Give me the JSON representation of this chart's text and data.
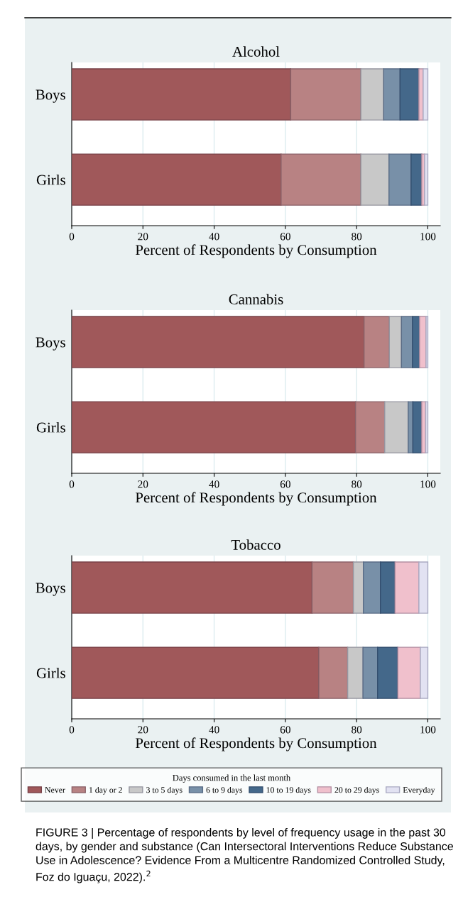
{
  "chart_data": [
    {
      "type": "bar",
      "title": "Alcohol",
      "xlabel": "Percent of Respondents by Consumption",
      "categories": [
        "Boys",
        "Girls"
      ],
      "stacked": true,
      "orientation": "horizontal",
      "xlim": [
        0,
        103.5
      ],
      "xticks": [
        0,
        20,
        40,
        60,
        80,
        100
      ],
      "grid": "x",
      "legend": "bottom",
      "legend_title": "Days consumed in the last month",
      "series": [
        {
          "name": "Never",
          "color": "#a0585a",
          "values": [
            61.5,
            58.8
          ]
        },
        {
          "name": "1 day or 2",
          "color": "#b88283",
          "values": [
            19.7,
            22.4
          ]
        },
        {
          "name": "3 to 5 days",
          "color": "#c8c8c8",
          "values": [
            6.4,
            7.9
          ]
        },
        {
          "name": "6 to 9 days",
          "color": "#7890a8",
          "values": [
            4.6,
            6.2
          ]
        },
        {
          "name": "10 to 19 days",
          "color": "#44688a",
          "values": [
            5.3,
            3.0
          ]
        },
        {
          "name": "20 to 29 days",
          "color": "#f0c0cc",
          "values": [
            1.2,
            0.8
          ]
        },
        {
          "name": "Everyday",
          "color": "#e2e2f2",
          "values": [
            1.3,
            0.9
          ]
        }
      ]
    },
    {
      "type": "bar",
      "title": "Cannabis",
      "xlabel": "Percent of Respondents by Consumption",
      "categories": [
        "Boys",
        "Girls"
      ],
      "stacked": true,
      "orientation": "horizontal",
      "xlim": [
        0,
        103.5
      ],
      "xticks": [
        0,
        20,
        40,
        60,
        80,
        100
      ],
      "grid": "x",
      "series": [
        {
          "color": "#a0585a",
          "values": [
            82.1,
            79.7
          ]
        },
        {
          "color": "#b88283",
          "values": [
            7.1,
            8.2
          ]
        },
        {
          "color": "#c8c8c8",
          "values": [
            3.4,
            6.6
          ]
        },
        {
          "color": "#7890a8",
          "values": [
            3.1,
            1.3
          ]
        },
        {
          "color": "#44688a",
          "values": [
            2.0,
            2.5
          ]
        },
        {
          "color": "#f0c0cc",
          "values": [
            1.8,
            1.1
          ]
        },
        {
          "color": "#e2e2f2",
          "values": [
            0.5,
            0.6
          ]
        }
      ]
    },
    {
      "type": "bar",
      "title": "Tobacco",
      "xlabel": "Percent of Respondents by Consumption",
      "categories": [
        "Boys",
        "Girls"
      ],
      "stacked": true,
      "orientation": "horizontal",
      "xlim": [
        0,
        103.5
      ],
      "xticks": [
        0,
        20,
        40,
        60,
        80,
        100
      ],
      "grid": "x",
      "annotations": [
        "FIGURE 3 | Percentage of respondents by level of frequency usage in the past 30 days, by gender and substance (Can Intersectoral Interventions Reduce Substance Use in Adolescence? Evidence From a Multicentre Randomized Controlled Study, Foz do Iguaçu, 2022).$^{2}$"
      ],
      "series": [
        {
          "color": "#a0585a",
          "values": [
            67.5,
            69.4
          ]
        },
        {
          "color": "#b88283",
          "values": [
            11.6,
            8.1
          ]
        },
        {
          "color": "#c8c8c8",
          "values": [
            2.8,
            4.3
          ]
        },
        {
          "color": "#7890a8",
          "values": [
            4.8,
            4.1
          ]
        },
        {
          "color": "#44688a",
          "values": [
            4.1,
            5.7
          ]
        },
        {
          "color": "#f0c0cc",
          "values": [
            6.7,
            6.3
          ]
        },
        {
          "color": "#e2e2f2",
          "values": [
            2.5,
            2.1
          ]
        }
      ]
    }
  ]
}
